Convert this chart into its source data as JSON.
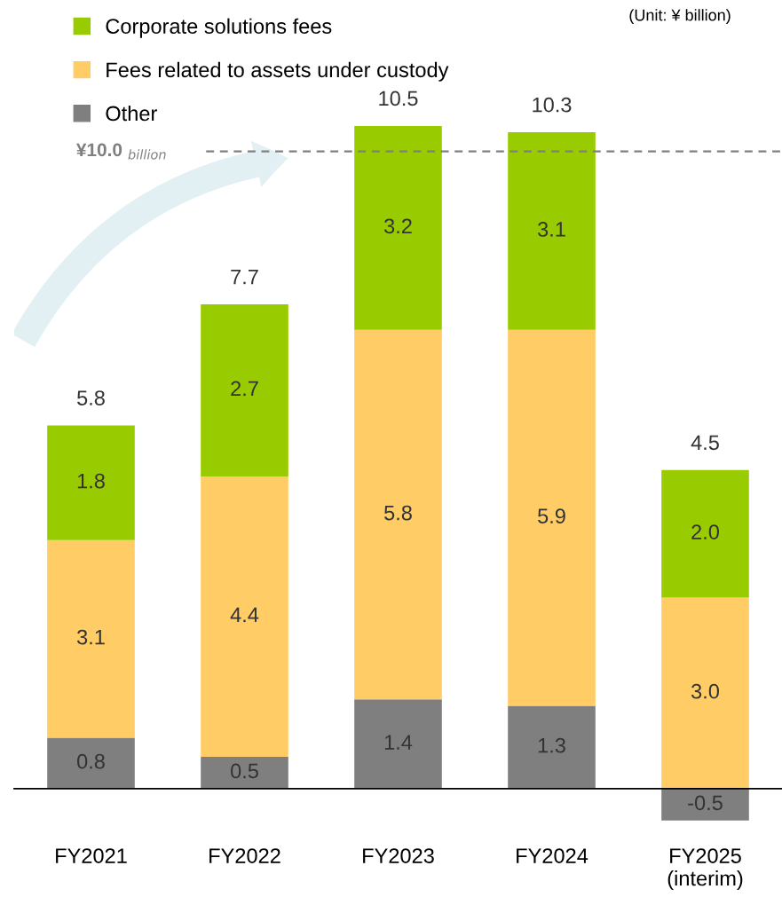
{
  "chart_data": {
    "type": "bar",
    "stacked": true,
    "categories": [
      "FY2021",
      "FY2022",
      "FY2023",
      "FY2024",
      "FY2025\n(interim)"
    ],
    "series": [
      {
        "name": "Other",
        "color": "#7f7f7f",
        "values": [
          0.8,
          0.5,
          1.4,
          1.3,
          -0.5
        ],
        "value_labels": [
          "0.8",
          "0.5",
          "1.4",
          "1.3",
          "-0.5"
        ]
      },
      {
        "name": "Fees related to assets under custody",
        "color": "#ffcc66",
        "values": [
          3.1,
          4.4,
          5.8,
          5.9,
          3.0
        ],
        "value_labels": [
          "3.1",
          "4.4",
          "5.8",
          "5.9",
          "3.0"
        ]
      },
      {
        "name": "Corporate solutions fees",
        "color": "#99cc00",
        "values": [
          1.8,
          2.7,
          3.2,
          3.1,
          2.0
        ],
        "value_labels": [
          "1.8",
          "2.7",
          "3.2",
          "3.1",
          "2.0"
        ]
      }
    ],
    "totals": [
      "5.8",
      "7.7",
      "10.5",
      "10.3",
      "4.5"
    ],
    "ref_lines": [
      {
        "axis": "y",
        "value": 10.0,
        "label": "¥10.0 $_{billion}$",
        "color": "#7f7f7f",
        "line_style": "dashed"
      }
    ],
    "annotations": [
      "(Unit: ¥ billion)"
    ],
    "legend": "top left"
  }
}
